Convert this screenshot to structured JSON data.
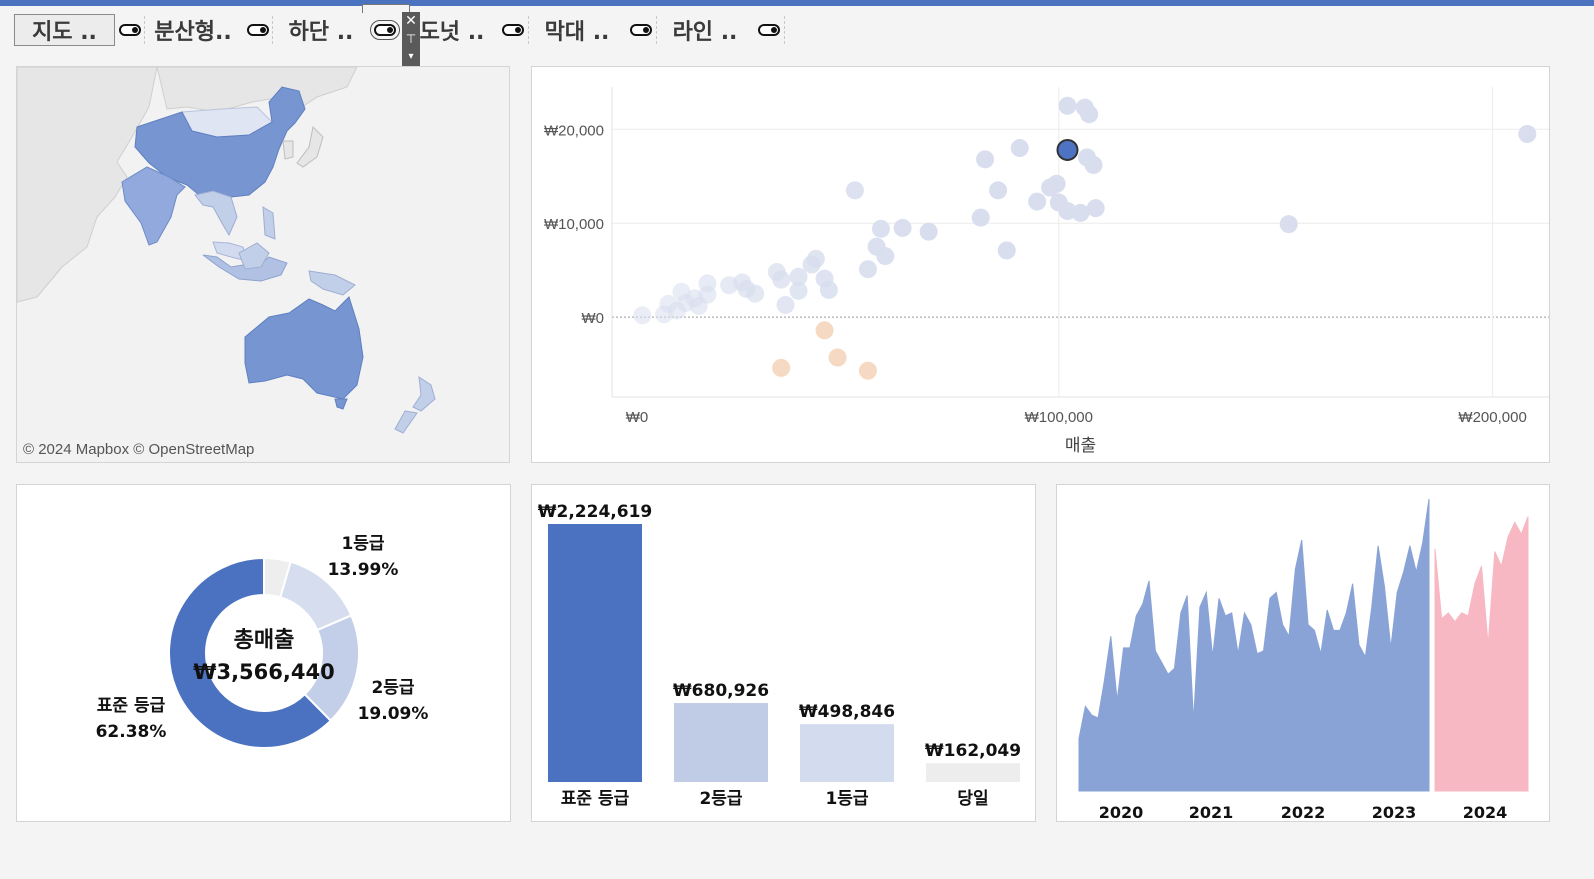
{
  "toolbar": {
    "buttons": [
      {
        "label": "지도 ..",
        "selected": true
      },
      {
        "label": "분산형..",
        "selected": false
      },
      {
        "label": "하단 ..",
        "selected": false
      },
      {
        "label": "도넛 ..",
        "selected": false
      },
      {
        "label": "막대 ..",
        "selected": false
      },
      {
        "label": "라인 ..",
        "selected": false
      }
    ],
    "popout": {
      "close_icon": "close-icon",
      "pin_icon": "pin-icon",
      "more_icon": "chevron-down-icon"
    }
  },
  "map": {
    "attribution": "© 2024 Mapbox © OpenStreetMap",
    "colors": {
      "strong": "#7795d1",
      "medium": "#91a9dc",
      "light": "#c2cfe9",
      "pale": "#dfe5f3",
      "base": "#e9e9e9"
    },
    "regions": [
      "China",
      "India",
      "Australia",
      "Indonesia",
      "Philippines",
      "Japan",
      "Mongolia",
      "Southeast Asia",
      "New Zealand"
    ]
  },
  "chart_data": [
    {
      "type": "scatter",
      "xlabel": "매출",
      "ylabel": "",
      "xlim": [
        -3000,
        213000
      ],
      "ylim": [
        -8500,
        24500
      ],
      "x_ticks": [
        "₩0",
        "₩100,000",
        "₩200,000"
      ],
      "y_ticks": [
        "₩20,000",
        "₩10,000",
        "₩0"
      ],
      "x_tick_values": [
        0,
        100000,
        200000
      ],
      "y_tick_values": [
        20000,
        10000,
        0
      ],
      "grid": true,
      "zero_line": "dotted",
      "highlight_color": "#4e73c2",
      "positive_color": "#d8deee",
      "negative_color": "#f4d7bf",
      "highlighted": {
        "x": 102000,
        "y": 17800
      },
      "points": [
        [
          102000,
          22500
        ],
        [
          106000,
          22300
        ],
        [
          107000,
          21600
        ],
        [
          208000,
          19500
        ],
        [
          91000,
          18000
        ],
        [
          83000,
          16800
        ],
        [
          108000,
          16200
        ],
        [
          106500,
          17000
        ],
        [
          53000,
          13500
        ],
        [
          86000,
          13500
        ],
        [
          98000,
          13800
        ],
        [
          99500,
          14200
        ],
        [
          95000,
          12300
        ],
        [
          100000,
          12200
        ],
        [
          102000,
          11300
        ],
        [
          108500,
          11600
        ],
        [
          105000,
          11100
        ],
        [
          82000,
          10600
        ],
        [
          59000,
          9400
        ],
        [
          64000,
          9500
        ],
        [
          70000,
          9100
        ],
        [
          153000,
          9900
        ],
        [
          58000,
          7500
        ],
        [
          60000,
          6500
        ],
        [
          88000,
          7100
        ],
        [
          56000,
          5100
        ],
        [
          44000,
          6200
        ],
        [
          43000,
          5600
        ],
        [
          35000,
          4800
        ],
        [
          36000,
          4000
        ],
        [
          40000,
          4300
        ],
        [
          46000,
          4100
        ],
        [
          47000,
          2900
        ],
        [
          40000,
          2800
        ],
        [
          27000,
          3700
        ],
        [
          24000,
          3400
        ],
        [
          28000,
          3000
        ],
        [
          30000,
          2500
        ],
        [
          19000,
          3600
        ],
        [
          19000,
          2400
        ],
        [
          13000,
          2700
        ],
        [
          16000,
          2000
        ],
        [
          14000,
          1500
        ],
        [
          17000,
          1200
        ],
        [
          10000,
          1400
        ],
        [
          12000,
          700
        ],
        [
          9000,
          300
        ],
        [
          4000,
          200
        ],
        [
          37000,
          1300
        ],
        [
          46000,
          -1400
        ],
        [
          49000,
          -4300
        ],
        [
          56000,
          -5700
        ],
        [
          36000,
          -5400
        ]
      ]
    },
    {
      "type": "pie",
      "donut": true,
      "center_title": "총매출",
      "center_value": "₩3,566,440",
      "slices": [
        {
          "name": "표준 등급",
          "percent": 62.38,
          "label": "62.38%",
          "color": "#4a72c0"
        },
        {
          "name": "2등급",
          "percent": 19.09,
          "label": "19.09%",
          "color": "#c3cfe8"
        },
        {
          "name": "1등급",
          "percent": 13.99,
          "label": "13.99%",
          "color": "#d5ddee"
        },
        {
          "name": "당일",
          "percent": 4.54,
          "label": "",
          "color": "#eeeeee"
        }
      ]
    },
    {
      "type": "bar",
      "categories": [
        "표준 등급",
        "2등급",
        "1등급",
        "당일"
      ],
      "values": [
        2224619,
        680926,
        498846,
        162049
      ],
      "value_labels": [
        "₩2,224,619",
        "₩680,926",
        "₩498,846",
        "₩162,049"
      ],
      "colors": [
        "#4a72c0",
        "#c0cce6",
        "#d2dcee",
        "#ededed"
      ],
      "ylim": [
        0,
        2224619
      ]
    },
    {
      "type": "area",
      "x_labels": [
        "2020",
        "2021",
        "2022",
        "2023",
        "2024"
      ],
      "series": [
        {
          "color": "#8aa3d6",
          "values": [
            18,
            29,
            26,
            25,
            38,
            53,
            31,
            49,
            49,
            60,
            64,
            72,
            48,
            44,
            40,
            42,
            61,
            67,
            24,
            63,
            68,
            46,
            66,
            60,
            61,
            47,
            61,
            57,
            47,
            48,
            66,
            68,
            57,
            53,
            76,
            86,
            57,
            55,
            47,
            62,
            55,
            55,
            61,
            71,
            50,
            46,
            63,
            84,
            70,
            49,
            68,
            75,
            84,
            75,
            85,
            100
          ]
        },
        {
          "color": "#f7b8c3",
          "values": [
            83,
            59,
            61,
            58,
            61,
            60,
            71,
            77,
            50,
            82,
            77,
            87,
            92,
            88,
            94
          ]
        }
      ],
      "ylim": [
        0,
        100
      ]
    }
  ]
}
